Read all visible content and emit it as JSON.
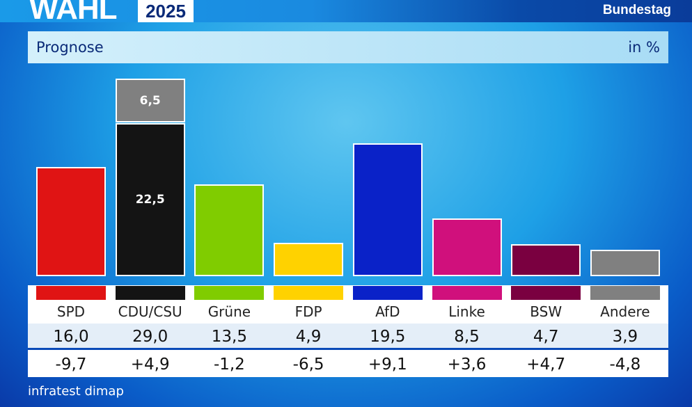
{
  "header": {
    "logo_wahl": "WAHL",
    "logo_year": "2025",
    "channel": "Bundestag",
    "title": "Prognose",
    "unit": "in %"
  },
  "chart_data": {
    "type": "bar",
    "title": "Prognose",
    "ylabel": "in %",
    "categories": [
      "SPD",
      "CDU/CSU",
      "Grüne",
      "FDP",
      "AfD",
      "Linke",
      "BSW",
      "Andere"
    ],
    "values": [
      16.0,
      29.0,
      13.5,
      4.9,
      19.5,
      8.5,
      4.7,
      3.9
    ],
    "values_label": [
      "16,0",
      "29,0",
      "13,5",
      "4,9",
      "19,5",
      "8,5",
      "4,7",
      "3,9"
    ],
    "change": [
      "-9,7",
      "+4,9",
      "-1,2",
      "-6,5",
      "+9,1",
      "+3,6",
      "+4,7",
      "-4,8"
    ],
    "colors": [
      "#e01414",
      "#141414",
      "#80cc00",
      "#ffd200",
      "#0a22c8",
      "#d0107c",
      "#7a0040",
      "#808080"
    ],
    "stack_cdu_csu": [
      {
        "name": "CDU",
        "value": 22.5,
        "label": "22,5",
        "color": "#141414"
      },
      {
        "name": "CSU",
        "value": 6.5,
        "label": "6,5",
        "color": "#808080"
      }
    ]
  },
  "footer": {
    "source": "infratest dimap"
  }
}
